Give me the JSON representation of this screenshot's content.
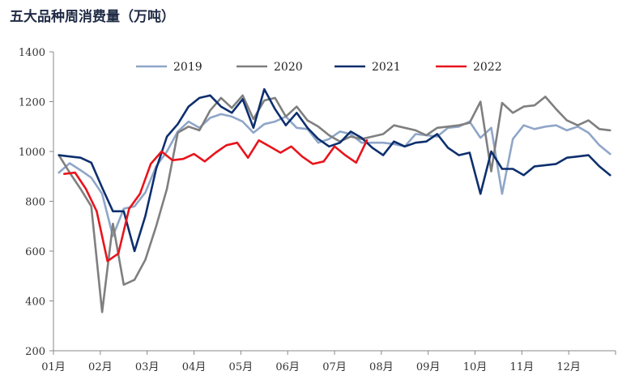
{
  "chart_data": {
    "type": "line",
    "title": "五大品种周消费量（万吨）",
    "xlabel": "",
    "ylabel": "",
    "ylim": [
      200,
      1400
    ],
    "yticks": [
      200,
      400,
      600,
      800,
      1000,
      1200,
      1400
    ],
    "months": [
      "01月",
      "02月",
      "03月",
      "04月",
      "05月",
      "06月",
      "07月",
      "08月",
      "09月",
      "10月",
      "11月",
      "12月"
    ],
    "x_unit": "week",
    "xlim": [
      0,
      52
    ],
    "grid": false,
    "legend_position": "top",
    "series": [
      {
        "name": "2019",
        "color": "#8fa6c8",
        "x": [
          0.5,
          1.5,
          2.5,
          3.5,
          4.5,
          5.5,
          6.5,
          7.5,
          8.5,
          9.5,
          10.5,
          11.5,
          12.5,
          13.5,
          14.5,
          15.5,
          16.5,
          17.5,
          18.5,
          19.5,
          20.5,
          21.5,
          22.5,
          23.5,
          24.5,
          25.5,
          26.5,
          27.5,
          28.5,
          29.5,
          30.5,
          31.5,
          32.5,
          33.5,
          34.5,
          35.5,
          36.5,
          37.5,
          38.5,
          39.5,
          40.5,
          41.5,
          42.5,
          43.5,
          44.5,
          45.5,
          46.5,
          47.5,
          48.5,
          49.5,
          50.5,
          51.5
        ],
        "values": [
          915,
          953,
          925,
          895,
          830,
          660,
          770,
          780,
          835,
          940,
          1000,
          1080,
          1120,
          1095,
          1135,
          1150,
          1140,
          1120,
          1075,
          1110,
          1120,
          1140,
          1095,
          1090,
          1035,
          1050,
          1080,
          1070,
          1035,
          1035,
          1035,
          1030,
          1020,
          1070,
          1065,
          1060,
          1095,
          1100,
          1120,
          1055,
          1095,
          830,
          1050,
          1105,
          1090,
          1100,
          1105,
          1085,
          1100,
          1075,
          1025,
          990
        ]
      },
      {
        "name": "2020",
        "color": "#7f7f7f",
        "x": [
          0.5,
          1.5,
          2.5,
          3.5,
          4.5,
          5.5,
          6.5,
          7.5,
          8.5,
          9.5,
          10.5,
          11.5,
          12.5,
          13.5,
          14.5,
          15.5,
          16.5,
          17.5,
          18.5,
          19.5,
          20.5,
          21.5,
          22.5,
          23.5,
          24.5,
          25.5,
          26.5,
          27.5,
          28.5,
          29.5,
          30.5,
          31.5,
          32.5,
          33.5,
          34.5,
          35.5,
          36.5,
          37.5,
          38.5,
          39.5,
          40.5,
          41.5,
          42.5,
          43.5,
          44.5,
          45.5,
          46.5,
          47.5,
          48.5,
          49.5,
          50.5,
          51.5
        ],
        "values": [
          985,
          915,
          850,
          780,
          355,
          710,
          465,
          485,
          565,
          700,
          850,
          1075,
          1100,
          1085,
          1165,
          1215,
          1175,
          1225,
          1130,
          1205,
          1215,
          1140,
          1180,
          1125,
          1100,
          1065,
          1040,
          1060,
          1050,
          1060,
          1070,
          1105,
          1095,
          1085,
          1065,
          1095,
          1100,
          1105,
          1115,
          1200,
          920,
          1195,
          1155,
          1180,
          1185,
          1220,
          1170,
          1125,
          1105,
          1125,
          1090,
          1085
        ]
      },
      {
        "name": "2021",
        "color": "#0d2f6e",
        "x": [
          0.5,
          1.5,
          2.5,
          3.5,
          4.5,
          5.5,
          6.5,
          7.5,
          8.5,
          9.5,
          10.5,
          11.5,
          12.5,
          13.5,
          14.5,
          15.5,
          16.5,
          17.5,
          18.5,
          19.5,
          20.5,
          21.5,
          22.5,
          23.5,
          24.5,
          25.5,
          26.5,
          27.5,
          28.5,
          29.5,
          30.5,
          31.5,
          32.5,
          33.5,
          34.5,
          35.5,
          36.5,
          37.5,
          38.5,
          39.5,
          40.5,
          41.5,
          42.5,
          43.5,
          44.5,
          45.5,
          46.5,
          47.5,
          48.5,
          49.5,
          50.5,
          51.5
        ],
        "values": [
          985,
          980,
          975,
          955,
          855,
          760,
          760,
          600,
          740,
          930,
          1060,
          1110,
          1180,
          1215,
          1225,
          1180,
          1155,
          1210,
          1095,
          1250,
          1170,
          1105,
          1155,
          1095,
          1050,
          1020,
          1035,
          1080,
          1055,
          1015,
          985,
          1040,
          1020,
          1035,
          1040,
          1070,
          1015,
          985,
          995,
          830,
          1000,
          930,
          930,
          905,
          940,
          945,
          950,
          975,
          980,
          985,
          940,
          905
        ]
      },
      {
        "name": "2022",
        "color": "#e8141c",
        "x": [
          1.0,
          2.0,
          3.0,
          4.0,
          5.0,
          6.0,
          7.0,
          8.0,
          9.0,
          10.0,
          11.0,
          12.0,
          13.0,
          14.0,
          15.0,
          16.0,
          17.0,
          18.0,
          19.0,
          20.0,
          21.0,
          22.0,
          23.0,
          24.0,
          25.0,
          26.0,
          27.0,
          28.0,
          29.0
        ],
        "values": [
          910,
          915,
          850,
          760,
          560,
          590,
          770,
          830,
          950,
          1000,
          965,
          970,
          990,
          960,
          995,
          1025,
          1035,
          975,
          1045,
          1020,
          995,
          1020,
          980,
          950,
          960,
          1020,
          985,
          955,
          1045
        ]
      }
    ]
  }
}
